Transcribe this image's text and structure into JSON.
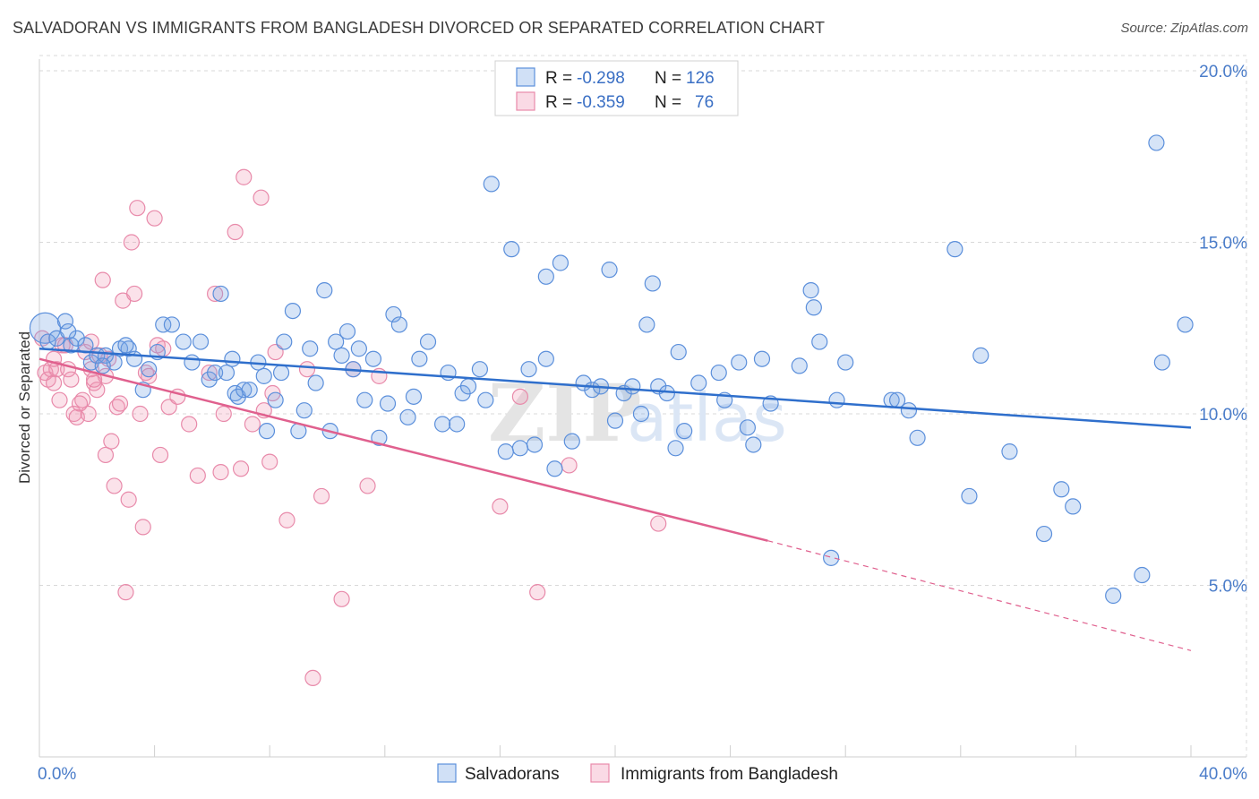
{
  "title": "SALVADORAN VS IMMIGRANTS FROM BANGLADESH DIVORCED OR SEPARATED CORRELATION CHART",
  "source": "Source: ZipAtlas.com",
  "watermark": {
    "zip": "ZIP",
    "atlas": "atlas"
  },
  "colors": {
    "blue_fill": "rgba(120,165,230,0.30)",
    "blue_stroke": "#5b8fdb",
    "blue_line": "#2f6fcc",
    "pink_fill": "rgba(240,150,180,0.28)",
    "pink_stroke": "#e88aaa",
    "pink_line": "#e0608e",
    "grid": "#d9d9d9",
    "tick_text": "#4a7cc9"
  },
  "legend": {
    "rows": [
      {
        "r_label": "R =",
        "r_value": "-0.298",
        "n_label": "N =",
        "n_value": "126"
      },
      {
        "r_label": "R =",
        "r_value": "-0.359",
        "n_label": "N =",
        "n_value": "76"
      }
    ]
  },
  "bottom_legend": [
    "Salvadorans",
    "Immigrants from Bangladesh"
  ],
  "chart_data": {
    "type": "scatter",
    "title": "SALVADORAN VS IMMIGRANTS FROM BANGLADESH DIVORCED OR SEPARATED CORRELATION CHART",
    "xlabel": "",
    "ylabel": "Divorced or Separated",
    "xlim": [
      0,
      40
    ],
    "ylim": [
      0,
      21
    ],
    "x_ticks": [
      {
        "v": 0,
        "label": "0.0%"
      },
      {
        "v": 40,
        "label": "40.0%"
      }
    ],
    "y_ticks": [
      {
        "v": 5,
        "label": "5.0%"
      },
      {
        "v": 10,
        "label": "10.0%"
      },
      {
        "v": 15,
        "label": "15.0%"
      },
      {
        "v": 20,
        "label": "20.0%"
      }
    ],
    "grid": true,
    "legend_position": "top-center",
    "series": [
      {
        "name": "Salvadorans",
        "R": -0.298,
        "N": 126,
        "trend": {
          "x0": 0,
          "y0": 11.9,
          "x1": 40,
          "y1": 9.6
        },
        "points": [
          [
            0.2,
            12.5
          ],
          [
            0.3,
            12.1
          ],
          [
            0.6,
            12.2
          ],
          [
            0.9,
            12.7
          ],
          [
            1.1,
            12.0
          ],
          [
            1.3,
            12.2
          ],
          [
            1.6,
            12.0
          ],
          [
            1.8,
            11.5
          ],
          [
            2.0,
            11.7
          ],
          [
            2.3,
            11.7
          ],
          [
            2.6,
            11.5
          ],
          [
            2.8,
            11.9
          ],
          [
            3.1,
            11.9
          ],
          [
            3.3,
            11.6
          ],
          [
            3.6,
            10.7
          ],
          [
            3.8,
            11.3
          ],
          [
            4.1,
            11.8
          ],
          [
            4.3,
            12.6
          ],
          [
            4.6,
            12.6
          ],
          [
            5.0,
            12.1
          ],
          [
            5.3,
            11.5
          ],
          [
            5.6,
            12.1
          ],
          [
            5.9,
            11.0
          ],
          [
            6.1,
            11.2
          ],
          [
            6.3,
            13.5
          ],
          [
            6.5,
            11.2
          ],
          [
            6.7,
            11.6
          ],
          [
            6.8,
            10.6
          ],
          [
            6.9,
            10.5
          ],
          [
            7.1,
            10.7
          ],
          [
            7.3,
            10.7
          ],
          [
            7.6,
            11.5
          ],
          [
            7.8,
            11.1
          ],
          [
            7.9,
            9.5
          ],
          [
            8.2,
            10.4
          ],
          [
            8.4,
            11.2
          ],
          [
            8.5,
            12.1
          ],
          [
            8.8,
            13.0
          ],
          [
            9.0,
            9.5
          ],
          [
            9.2,
            10.1
          ],
          [
            9.4,
            11.9
          ],
          [
            9.6,
            10.9
          ],
          [
            9.9,
            13.6
          ],
          [
            10.1,
            9.5
          ],
          [
            10.3,
            12.1
          ],
          [
            10.5,
            11.7
          ],
          [
            10.7,
            12.4
          ],
          [
            10.9,
            11.3
          ],
          [
            11.1,
            11.9
          ],
          [
            11.3,
            10.4
          ],
          [
            11.6,
            11.6
          ],
          [
            11.8,
            9.3
          ],
          [
            12.1,
            10.3
          ],
          [
            12.3,
            12.9
          ],
          [
            12.5,
            12.6
          ],
          [
            12.8,
            9.9
          ],
          [
            13.0,
            10.5
          ],
          [
            13.2,
            11.6
          ],
          [
            13.5,
            12.1
          ],
          [
            14.0,
            9.7
          ],
          [
            14.2,
            11.2
          ],
          [
            14.5,
            9.7
          ],
          [
            14.7,
            10.6
          ],
          [
            14.9,
            10.8
          ],
          [
            15.3,
            11.3
          ],
          [
            15.5,
            10.4
          ],
          [
            15.7,
            16.7
          ],
          [
            16.2,
            8.9
          ],
          [
            16.4,
            14.8
          ],
          [
            16.7,
            9.0
          ],
          [
            17.0,
            11.3
          ],
          [
            17.2,
            9.1
          ],
          [
            17.6,
            11.6
          ],
          [
            17.6,
            14.0
          ],
          [
            17.9,
            8.4
          ],
          [
            18.1,
            14.4
          ],
          [
            18.5,
            9.2
          ],
          [
            18.9,
            10.9
          ],
          [
            19.2,
            10.7
          ],
          [
            19.5,
            10.8
          ],
          [
            19.8,
            14.2
          ],
          [
            20.0,
            9.8
          ],
          [
            20.3,
            10.6
          ],
          [
            20.6,
            10.8
          ],
          [
            20.9,
            10.0
          ],
          [
            21.1,
            12.6
          ],
          [
            21.3,
            13.8
          ],
          [
            21.5,
            10.8
          ],
          [
            21.8,
            10.6
          ],
          [
            22.1,
            9.0
          ],
          [
            22.2,
            11.8
          ],
          [
            22.4,
            9.5
          ],
          [
            22.9,
            10.9
          ],
          [
            23.6,
            11.2
          ],
          [
            23.8,
            10.4
          ],
          [
            24.3,
            11.5
          ],
          [
            24.6,
            9.6
          ],
          [
            24.8,
            9.1
          ],
          [
            25.1,
            11.6
          ],
          [
            25.4,
            10.3
          ],
          [
            26.4,
            11.4
          ],
          [
            26.8,
            13.6
          ],
          [
            26.9,
            13.1
          ],
          [
            27.1,
            12.1
          ],
          [
            27.5,
            5.8
          ],
          [
            27.7,
            10.4
          ],
          [
            28.0,
            11.5
          ],
          [
            29.6,
            10.4
          ],
          [
            29.8,
            10.4
          ],
          [
            30.2,
            10.1
          ],
          [
            30.5,
            9.3
          ],
          [
            31.8,
            14.8
          ],
          [
            32.3,
            7.6
          ],
          [
            32.7,
            11.7
          ],
          [
            33.7,
            8.9
          ],
          [
            34.9,
            6.5
          ],
          [
            35.5,
            7.8
          ],
          [
            35.9,
            7.3
          ],
          [
            37.3,
            4.7
          ],
          [
            38.3,
            5.3
          ],
          [
            39.0,
            11.5
          ],
          [
            38.8,
            17.9
          ],
          [
            39.8,
            12.6
          ],
          [
            1.0,
            12.4
          ],
          [
            2.2,
            11.4
          ],
          [
            3.0,
            12.0
          ]
        ]
      },
      {
        "name": "Immigrants from Bangladesh",
        "R": -0.359,
        "N": 76,
        "trend": {
          "x0": 0,
          "y0": 11.6,
          "x1": 25.3,
          "y1": 6.3,
          "dashed_to_x": 40,
          "dashed_to_y": 3.1
        },
        "points": [
          [
            0.1,
            12.2
          ],
          [
            0.2,
            11.2
          ],
          [
            0.3,
            11.0
          ],
          [
            0.4,
            11.3
          ],
          [
            0.5,
            10.9
          ],
          [
            0.6,
            11.3
          ],
          [
            0.7,
            10.4
          ],
          [
            0.8,
            12.0
          ],
          [
            0.9,
            12.0
          ],
          [
            1.0,
            11.3
          ],
          [
            1.1,
            11.0
          ],
          [
            1.2,
            10.0
          ],
          [
            1.3,
            9.9
          ],
          [
            1.5,
            10.4
          ],
          [
            1.6,
            11.8
          ],
          [
            1.7,
            10.0
          ],
          [
            1.8,
            12.1
          ],
          [
            1.9,
            10.9
          ],
          [
            2.0,
            10.7
          ],
          [
            2.1,
            11.7
          ],
          [
            2.2,
            13.9
          ],
          [
            2.3,
            8.8
          ],
          [
            2.5,
            9.2
          ],
          [
            2.6,
            7.9
          ],
          [
            2.7,
            10.2
          ],
          [
            2.8,
            10.3
          ],
          [
            2.9,
            13.3
          ],
          [
            3.0,
            4.8
          ],
          [
            3.1,
            7.5
          ],
          [
            3.2,
            15.0
          ],
          [
            3.3,
            13.5
          ],
          [
            3.4,
            16.0
          ],
          [
            3.5,
            10.0
          ],
          [
            3.6,
            6.7
          ],
          [
            3.7,
            11.2
          ],
          [
            4.0,
            15.7
          ],
          [
            4.1,
            12.0
          ],
          [
            4.3,
            11.9
          ],
          [
            4.5,
            10.2
          ],
          [
            4.8,
            10.5
          ],
          [
            5.2,
            9.7
          ],
          [
            5.5,
            8.2
          ],
          [
            5.9,
            11.2
          ],
          [
            6.1,
            13.5
          ],
          [
            6.4,
            10.0
          ],
          [
            6.8,
            15.3
          ],
          [
            7.0,
            8.4
          ],
          [
            7.1,
            16.9
          ],
          [
            7.4,
            9.7
          ],
          [
            7.7,
            16.3
          ],
          [
            7.8,
            10.1
          ],
          [
            8.0,
            8.6
          ],
          [
            8.1,
            10.6
          ],
          [
            8.2,
            11.8
          ],
          [
            8.6,
            6.9
          ],
          [
            9.3,
            11.3
          ],
          [
            9.5,
            2.3
          ],
          [
            9.8,
            7.6
          ],
          [
            10.5,
            4.6
          ],
          [
            10.9,
            11.3
          ],
          [
            11.4,
            7.9
          ],
          [
            11.8,
            11.1
          ],
          [
            16.0,
            7.3
          ],
          [
            16.7,
            10.5
          ],
          [
            17.3,
            4.8
          ],
          [
            18.4,
            8.5
          ],
          [
            21.5,
            6.8
          ],
          [
            1.4,
            10.3
          ],
          [
            1.8,
            11.3
          ],
          [
            2.4,
            11.6
          ],
          [
            0.5,
            11.6
          ],
          [
            1.9,
            11.0
          ],
          [
            2.3,
            11.1
          ],
          [
            3.8,
            11.1
          ],
          [
            4.2,
            8.8
          ],
          [
            6.3,
            8.3
          ]
        ]
      }
    ]
  }
}
